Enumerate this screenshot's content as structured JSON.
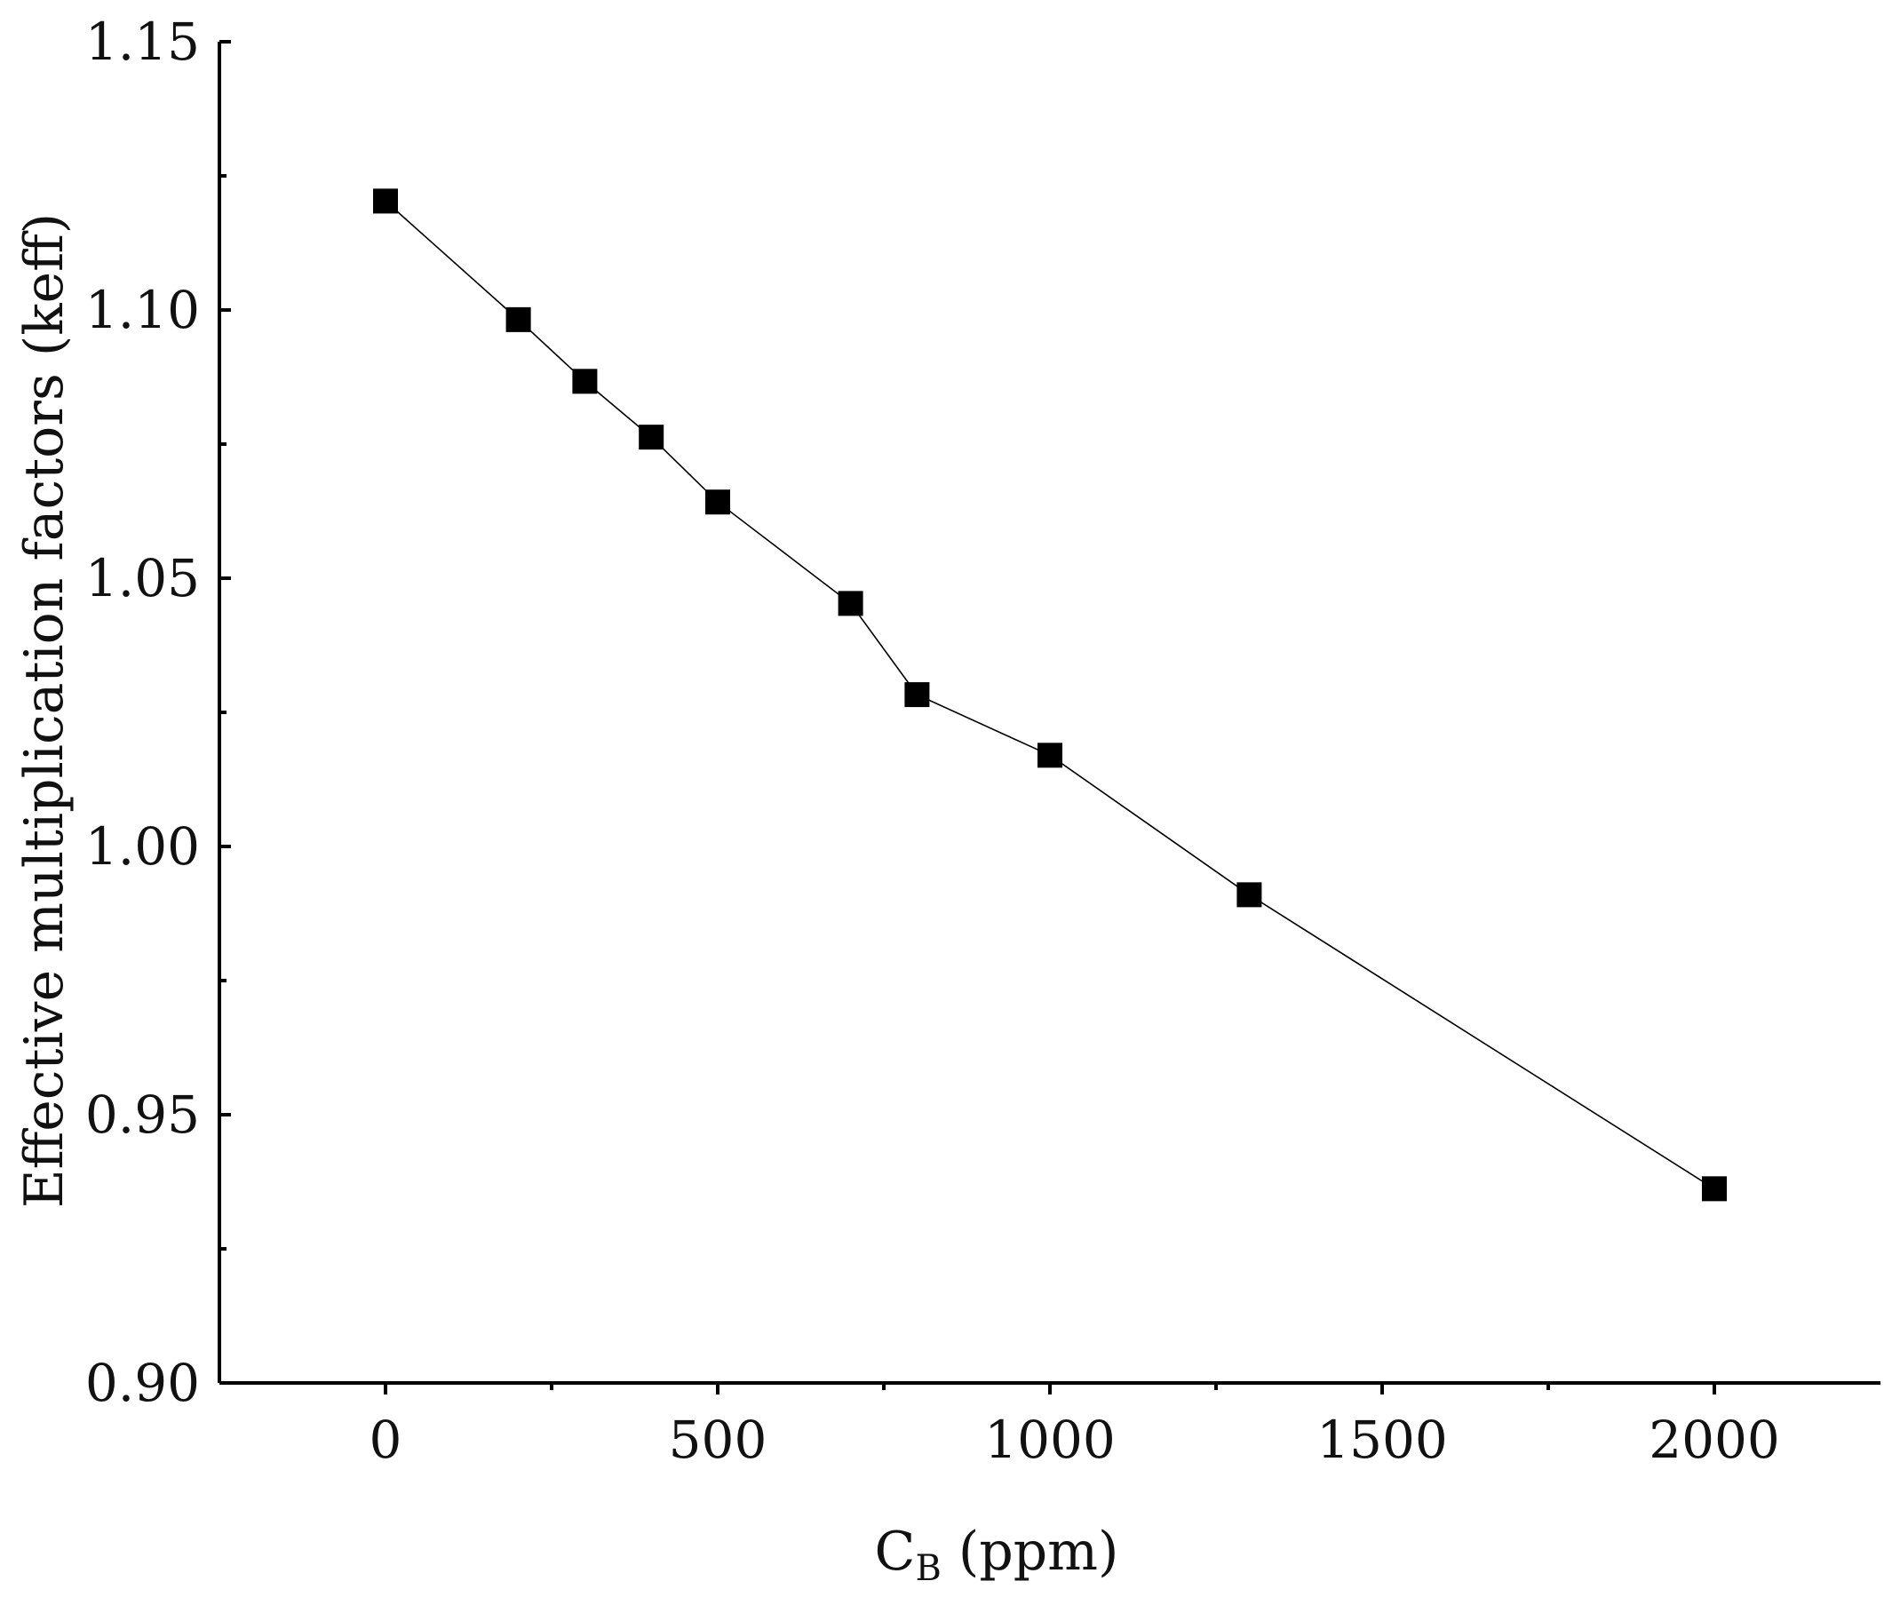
{
  "chart_data": {
    "type": "line",
    "marker": "square",
    "xlabel": {
      "main": "C",
      "sub": "B",
      "suffix": " (ppm)"
    },
    "ylabel": "Effective multiplication factors (keff)",
    "xlim": [
      -250,
      2250
    ],
    "ylim": [
      0.9,
      1.15
    ],
    "x_ticks": [
      0,
      500,
      1000,
      1500,
      2000
    ],
    "x_minor_ticks": [
      250,
      750,
      1250,
      1750
    ],
    "y_ticks": [
      0.9,
      0.95,
      1.0,
      1.05,
      1.1,
      1.15
    ],
    "y_tick_labels": [
      "0.90",
      "0.95",
      "1.00",
      "1.05",
      "1.10",
      "1.15"
    ],
    "y_minor_ticks": [
      0.925,
      0.975,
      1.025,
      1.075,
      1.125
    ],
    "grid": false,
    "series": [
      {
        "x": [
          0,
          200,
          300,
          400,
          500,
          700,
          800,
          1000,
          1300,
          2000
        ],
        "y": [
          1.1203,
          1.0982,
          1.0867,
          1.0763,
          1.0642,
          1.0453,
          1.0283,
          1.017,
          0.991,
          0.9362
        ]
      }
    ],
    "colors": {
      "line": "#000000",
      "marker": "#000000",
      "axis": "#000000"
    }
  }
}
